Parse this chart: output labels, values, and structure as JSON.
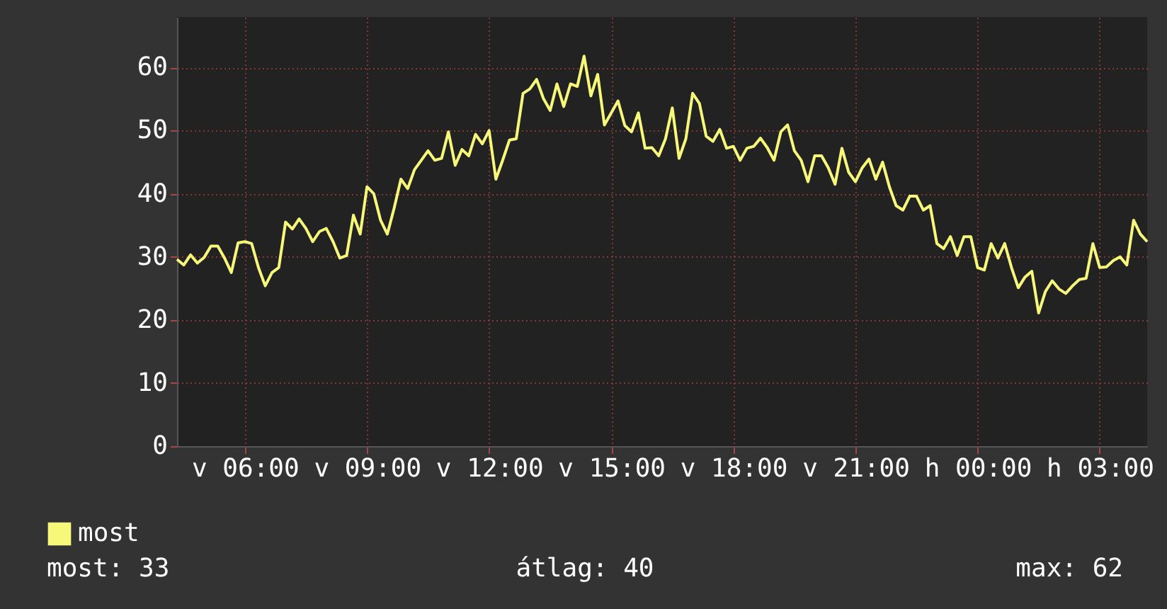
{
  "chart_data": {
    "type": "line",
    "categories": [
      null,
      null,
      null,
      null,
      null,
      null,
      null,
      null,
      null,
      null,
      "v 06:00",
      null,
      null,
      null,
      null,
      null,
      null,
      null,
      null,
      null,
      null,
      null,
      null,
      null,
      null,
      null,
      null,
      null,
      "v 09:00",
      null,
      null,
      null,
      null,
      null,
      null,
      null,
      null,
      null,
      null,
      null,
      null,
      null,
      null,
      null,
      null,
      null,
      "v 12:00",
      null,
      null,
      null,
      null,
      null,
      null,
      null,
      null,
      null,
      null,
      null,
      null,
      null,
      null,
      null,
      null,
      null,
      "v 15:00",
      null,
      null,
      null,
      null,
      null,
      null,
      null,
      null,
      null,
      null,
      null,
      null,
      null,
      null,
      null,
      null,
      null,
      "v 18:00",
      null,
      null,
      null,
      null,
      null,
      null,
      null,
      null,
      null,
      null,
      null,
      null,
      null,
      null,
      null,
      null,
      null,
      "v 21:00",
      null,
      null,
      null,
      null,
      null,
      null,
      null,
      null,
      null,
      null,
      null,
      null,
      null,
      null,
      null,
      null,
      null,
      "h 00:00",
      null,
      null,
      null,
      null,
      null,
      null,
      null,
      null,
      null,
      null,
      null,
      null,
      null,
      null,
      null,
      null,
      null,
      "h 03:00",
      null,
      null,
      null,
      null,
      null,
      null,
      null
    ],
    "series": [
      {
        "name": "most",
        "color": "#f7f77a",
        "values": [
          29.6,
          28.7,
          30.3,
          29,
          29.9,
          31.7,
          31.7,
          29.8,
          27.5,
          32.2,
          32.4,
          32.1,
          28.3,
          25.4,
          27.5,
          28.3,
          35.5,
          34.4,
          36,
          34.5,
          32.4,
          34,
          34.5,
          32.4,
          29.8,
          30.2,
          36.6,
          33.6,
          41.1,
          40,
          35.8,
          33.6,
          37.7,
          42.3,
          40.8,
          43.8,
          45.3,
          46.8,
          45.3,
          45.6,
          49.8,
          44.5,
          47,
          46,
          49.4,
          47.9,
          50,
          42.3,
          45.3,
          48.5,
          48.7,
          55.9,
          56.6,
          58.1,
          55.1,
          53.2,
          57.4,
          53.8,
          57.4,
          57,
          61.8,
          55.5,
          58.9,
          50.9,
          52.8,
          54.7,
          50.8,
          49.8,
          52.8,
          47.2,
          47.3,
          46,
          48.7,
          53.6,
          45.6,
          48.7,
          55.9,
          54.3,
          49.1,
          48.3,
          50.2,
          47.2,
          47.5,
          45.3,
          47.2,
          47.5,
          48.8,
          47.3,
          45.3,
          49.8,
          50.9,
          46.8,
          45.3,
          41.9,
          46,
          46,
          44.1,
          41.5,
          47.2,
          43.4,
          41.9,
          44.1,
          45.5,
          42.3,
          45,
          41.1,
          38.1,
          37.4,
          39.6,
          39.6,
          37.4,
          38.1,
          32.1,
          31.3,
          33.2,
          30.2,
          33.2,
          33.2,
          28.3,
          27.9,
          32.1,
          29.8,
          32.1,
          28.3,
          25.1,
          26.8,
          27.7,
          21.1,
          24.5,
          26.2,
          24.9,
          24.2,
          25.4,
          26.4,
          26.6,
          32.1,
          28.3,
          28.4,
          29.4,
          30,
          28.7,
          35.8,
          33.6,
          32.4
        ]
      }
    ],
    "ylim": [
      0,
      68
    ],
    "yticks": [
      0,
      10,
      20,
      30,
      40,
      50,
      60
    ],
    "grid": true,
    "legend": "bottom left",
    "marker": "none",
    "line_style": "solid",
    "annotations": [
      "most: 33",
      "átlag: 40",
      "max: 62"
    ]
  }
}
